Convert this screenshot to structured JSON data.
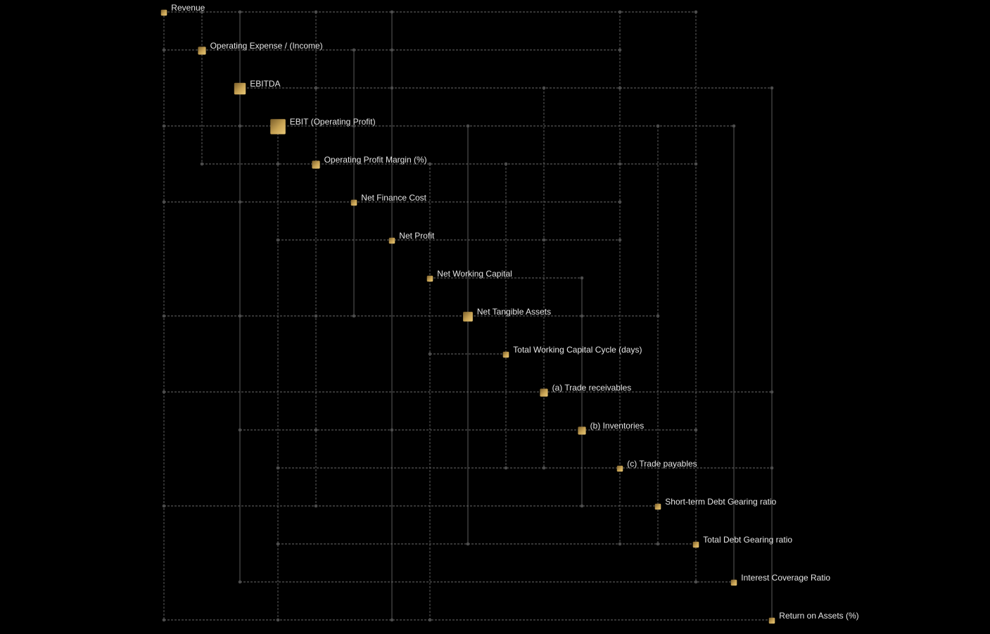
{
  "nodes": [
    {
      "id": "revenue",
      "label": "Revenue",
      "weight": 1
    },
    {
      "id": "operating-expense",
      "label": "Operating Expense / (Income)",
      "weight": 2
    },
    {
      "id": "ebitda",
      "label": "EBITDA",
      "weight": 4
    },
    {
      "id": "ebit",
      "label": "EBIT (Operating Profit)",
      "weight": 6
    },
    {
      "id": "operating-profit-margin",
      "label": "Operating Profit Margin (%)",
      "weight": 2
    },
    {
      "id": "net-finance-cost",
      "label": "Net Finance Cost",
      "weight": 1
    },
    {
      "id": "net-profit",
      "label": "Net Profit",
      "weight": 1
    },
    {
      "id": "net-working-capital",
      "label": "Net Working Capital",
      "weight": 1
    },
    {
      "id": "net-tangible-assets",
      "label": "Net Tangible Assets",
      "weight": 3
    },
    {
      "id": "total-working-capital-cycle",
      "label": "Total Working Capital Cycle (days)",
      "weight": 1
    },
    {
      "id": "trade-receivables",
      "label": "(a) Trade receivables",
      "weight": 2
    },
    {
      "id": "inventories",
      "label": "(b) Inventories",
      "weight": 2
    },
    {
      "id": "trade-payables",
      "label": "(c) Trade payables",
      "weight": 1
    },
    {
      "id": "short-term-debt-gearing",
      "label": "Short-term Debt Gearing ratio",
      "weight": 1
    },
    {
      "id": "total-debt-gearing",
      "label": "Total Debt Gearing ratio",
      "weight": 1
    },
    {
      "id": "interest-coverage",
      "label": "Interest Coverage Ratio",
      "weight": 1
    },
    {
      "id": "return-on-assets",
      "label": "Return on Assets (%)",
      "weight": 1
    }
  ],
  "rows": [
    [
      1,
      2,
      4,
      6,
      12,
      14
    ],
    [
      0,
      5,
      6,
      12
    ],
    [
      4,
      6,
      10,
      12,
      16
    ],
    [
      0,
      2,
      5,
      8,
      13,
      15
    ],
    [
      1,
      3,
      7,
      9,
      12,
      14
    ],
    [
      0,
      2,
      12
    ],
    [
      3,
      10,
      12
    ],
    [
      7,
      11
    ],
    [
      0,
      2,
      4,
      5,
      11,
      13
    ],
    [
      7
    ],
    [
      0,
      16
    ],
    [
      2,
      4,
      6,
      14
    ],
    [
      3,
      9,
      10,
      16
    ],
    [
      0,
      4,
      11
    ],
    [
      3,
      8,
      12,
      13
    ],
    [
      2,
      14
    ],
    [
      0,
      3,
      6,
      7,
      16
    ]
  ],
  "dashed_columns": [
    0,
    1,
    3,
    4,
    7,
    9,
    10,
    12,
    13,
    14
  ]
}
